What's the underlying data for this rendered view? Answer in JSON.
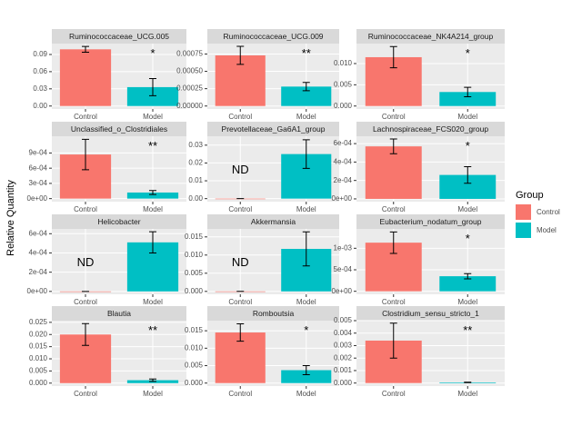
{
  "y_label": "Relative Quantity",
  "legend": {
    "title": "Group",
    "entries": [
      {
        "name": "Control",
        "color": "#F8766D"
      },
      {
        "name": "Model",
        "color": "#00BFC4"
      }
    ]
  },
  "chart_data": [
    {
      "type": "bar",
      "title": "Ruminococcaceae_UCG.005",
      "categories": [
        "Control",
        "Model"
      ],
      "values": [
        0.099,
        0.033
      ],
      "errors": [
        0.005,
        0.015
      ],
      "annotations": [
        null,
        "*"
      ],
      "ylim": [
        -0.0052,
        0.109
      ],
      "yticks": [
        {
          "value": 0,
          "label": "0.00"
        },
        0.03,
        0.06,
        0.09
      ]
    },
    {
      "type": "bar",
      "title": "Ruminococcaceae_UCG.009",
      "categories": [
        "Control",
        "Model"
      ],
      "values": [
        0.00073,
        0.00028
      ],
      "errors": [
        0.00013,
        6e-05
      ],
      "annotations": [
        null,
        "**"
      ],
      "ylim": [
        -4.3e-05,
        0.0009
      ],
      "yticks": [
        {
          "value": 0,
          "label": "0.00000"
        },
        0.00025,
        {
          "value": 0.0005,
          "label": "0.00050"
        },
        0.00075
      ]
    },
    {
      "type": "bar",
      "title": "Ruminococcaceae_NK4A214_group",
      "categories": [
        "Control",
        "Model"
      ],
      "values": [
        0.0115,
        0.0033
      ],
      "errors": [
        0.0025,
        0.0011
      ],
      "annotations": [
        null,
        "*"
      ],
      "ylim": [
        -0.0007,
        0.0147
      ],
      "yticks": [
        {
          "value": 0,
          "label": "0.000"
        },
        0.005,
        {
          "value": 0.01,
          "label": "0.010"
        }
      ]
    },
    {
      "type": "bar",
      "title": "Unclassified_o_Clostridiales",
      "categories": [
        "Control",
        "Model"
      ],
      "values": [
        0.00087,
        0.00012
      ],
      "errors": [
        0.0003,
        4e-05
      ],
      "annotations": [
        null,
        "**"
      ],
      "ylim": [
        -6e-05,
        0.00123
      ],
      "yticks": [
        {
          "value": 0,
          "label": "0e+00"
        },
        {
          "value": 0.0003,
          "label": "3e-04"
        },
        {
          "value": 0.0006,
          "label": "6e-04"
        },
        {
          "value": 0.0009,
          "label": "9e-04"
        }
      ]
    },
    {
      "type": "bar",
      "title": "Prevotellaceae_Ga6A1_group",
      "categories": [
        "Control",
        "Model"
      ],
      "values": [
        0,
        0.025
      ],
      "errors": [
        0,
        0.008
      ],
      "annotations": [
        "ND",
        null
      ],
      "ylim": [
        -0.0017,
        0.035
      ],
      "yticks": [
        {
          "value": 0,
          "label": "0.00"
        },
        0.01,
        0.02,
        0.03
      ]
    },
    {
      "type": "bar",
      "title": "Lachnospiraceae_FCS020_group",
      "categories": [
        "Control",
        "Model"
      ],
      "values": [
        0.00057,
        0.00026
      ],
      "errors": [
        8e-05,
        9e-05
      ],
      "annotations": [
        null,
        "*"
      ],
      "ylim": [
        -3e-05,
        0.00068
      ],
      "yticks": [
        {
          "value": 0,
          "label": "0e+00"
        },
        {
          "value": 0.0002,
          "label": "2e-04"
        },
        {
          "value": 0.0004,
          "label": "4e-04"
        },
        {
          "value": 0.0006,
          "label": "6e-04"
        }
      ]
    },
    {
      "type": "bar",
      "title": "Helicobacter",
      "categories": [
        "Control",
        "Model"
      ],
      "values": [
        0,
        0.00051
      ],
      "errors": [
        0,
        0.00011
      ],
      "annotations": [
        "ND",
        null
      ],
      "ylim": [
        -3e-05,
        0.00065
      ],
      "yticks": [
        {
          "value": 0,
          "label": "0e+00"
        },
        {
          "value": 0.0002,
          "label": "2e-04"
        },
        {
          "value": 0.0004,
          "label": "4e-04"
        },
        {
          "value": 0.0006,
          "label": "6e-04"
        }
      ]
    },
    {
      "type": "bar",
      "title": "Akkermansia",
      "categories": [
        "Control",
        "Model"
      ],
      "values": [
        0,
        0.0117
      ],
      "errors": [
        0,
        0.0047
      ],
      "annotations": [
        "ND",
        null
      ],
      "ylim": [
        -0.0008,
        0.0172
      ],
      "yticks": [
        {
          "value": 0,
          "label": "0.000"
        },
        0.005,
        {
          "value": 0.01,
          "label": "0.010"
        },
        0.015
      ]
    },
    {
      "type": "bar",
      "title": "Eubacterium_nodatum_group",
      "categories": [
        "Control",
        "Model"
      ],
      "values": [
        0.00113,
        0.00035
      ],
      "errors": [
        0.00025,
        6e-05
      ],
      "annotations": [
        null,
        "*"
      ],
      "ylim": [
        -7e-05,
        0.00145
      ],
      "yticks": [
        {
          "value": 0,
          "label": "0e+00"
        },
        {
          "value": 0.0005,
          "label": "5e-04"
        },
        {
          "value": 0.001,
          "label": "1e-03"
        }
      ]
    },
    {
      "type": "bar",
      "title": "Blautia",
      "categories": [
        "Control",
        "Model"
      ],
      "values": [
        0.02,
        0.0012
      ],
      "errors": [
        0.0045,
        0.0005
      ],
      "annotations": [
        null,
        "**"
      ],
      "ylim": [
        -0.0012,
        0.0257
      ],
      "yticks": [
        {
          "value": 0,
          "label": "0.000"
        },
        0.005,
        {
          "value": 0.01,
          "label": "0.010"
        },
        0.015,
        {
          "value": 0.02,
          "label": "0.020"
        },
        0.025
      ]
    },
    {
      "type": "bar",
      "title": "Romboutsia",
      "categories": [
        "Control",
        "Model"
      ],
      "values": [
        0.0145,
        0.0037
      ],
      "errors": [
        0.0025,
        0.0013
      ],
      "annotations": [
        null,
        "*"
      ],
      "ylim": [
        -0.00085,
        0.0179
      ],
      "yticks": [
        {
          "value": 0,
          "label": "0.000"
        },
        0.005,
        {
          "value": 0.01,
          "label": "0.010"
        },
        0.015
      ]
    },
    {
      "type": "bar",
      "title": "Clostridium_sensu_stricto_1",
      "categories": [
        "Control",
        "Model"
      ],
      "values": [
        0.0034,
        5e-05
      ],
      "errors": [
        0.0014,
        2e-05
      ],
      "annotations": [
        null,
        "**"
      ],
      "ylim": [
        -0.00024,
        0.005
      ],
      "yticks": [
        {
          "value": 0,
          "label": "0.000"
        },
        0.001,
        0.002,
        0.003,
        0.004,
        0.005
      ]
    }
  ]
}
